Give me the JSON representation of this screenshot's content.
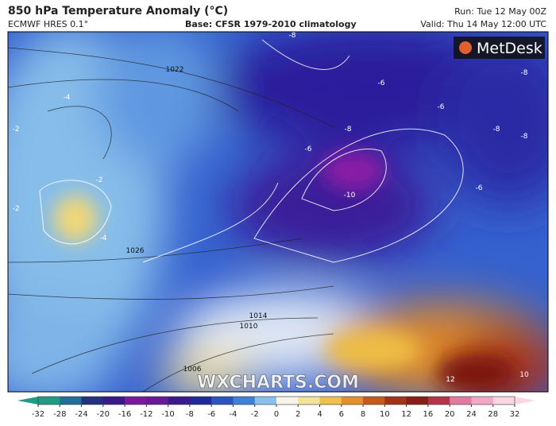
{
  "header": {
    "title": "850 hPa Temperature Anomaly (°C)",
    "model": "ECMWF HRES 0.1°",
    "base": "Base: CFSR 1979-2010 climatology",
    "run": "Run: Tue 12 May 00Z",
    "valid": "Valid: Thu 14 May 12:00 UTC"
  },
  "logo": "MetDesk",
  "watermark": "WXCHARTS.COM",
  "map": {
    "contour_labels": [
      "-8",
      "-6",
      "-8",
      "-6",
      "-8",
      "-8",
      "-8",
      "-6",
      "-10",
      "-6",
      "-2",
      "-4",
      "-2",
      "-2",
      "-4",
      "1022",
      "1026",
      "1014",
      "1010",
      "1006",
      "10",
      "12"
    ]
  },
  "colorbar": {
    "ticks": [
      -32,
      -28,
      -24,
      -20,
      -16,
      -12,
      -10,
      -8,
      -6,
      -4,
      -2,
      0,
      2,
      4,
      6,
      8,
      10,
      12,
      16,
      20,
      24,
      28,
      32
    ],
    "colors": [
      "#1f9c84",
      "#226f9a",
      "#23327e",
      "#3a1a86",
      "#7d1a9c",
      "#6a1a98",
      "#3d1a8c",
      "#2028a0",
      "#2c52c8",
      "#3f7fe0",
      "#8cc0ec",
      "#f6f4e8",
      "#f3e39a",
      "#eec247",
      "#e2902a",
      "#c9581d",
      "#a8311a",
      "#8a1d16",
      "#b8324a",
      "#e07aa0",
      "#f0a8c4",
      "#f8d6e4"
    ]
  }
}
